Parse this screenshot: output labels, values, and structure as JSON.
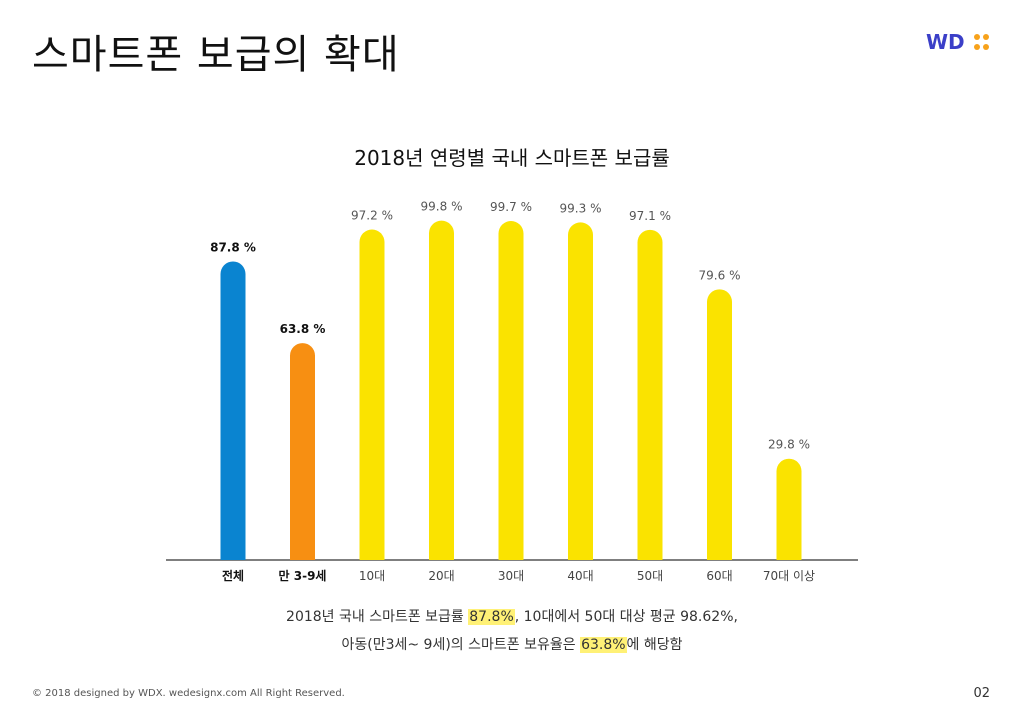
{
  "page": {
    "title": "스마트폰 보급의 확대",
    "page_number": "02",
    "footer": "© 2018 designed by WDX.  wedesignx.com  All Right Reserved."
  },
  "brand": {
    "logo_text": "WD",
    "color": "#3b3fc8",
    "dots_color": "#f7a21b"
  },
  "chart_data": {
    "type": "bar",
    "title": "2018년 연령별 국내 스마트폰 보급률",
    "categories": [
      "전체",
      "만 3-9세",
      "10대",
      "20대",
      "30대",
      "40대",
      "50대",
      "60대",
      "70대 이상"
    ],
    "values": [
      87.8,
      63.8,
      97.2,
      99.8,
      99.7,
      99.3,
      97.1,
      79.6,
      29.8
    ],
    "labels": [
      "87.8 %",
      "63.8 %",
      "97.2 %",
      "99.8 %",
      "99.7 %",
      "99.3 %",
      "97.1 %",
      "79.6 %",
      "29.8 %"
    ],
    "colors": [
      "#0a84d0",
      "#f78f12",
      "#fae300",
      "#fae300",
      "#fae300",
      "#fae300",
      "#fae300",
      "#fae300",
      "#fae300"
    ],
    "bold": [
      true,
      true,
      false,
      false,
      false,
      false,
      false,
      false,
      false
    ],
    "ylim": [
      0,
      100
    ],
    "grid": false,
    "xlabel": "",
    "ylabel": ""
  },
  "summary": {
    "line1_pre": "2018년 국내 스마트폰 보급률 ",
    "line1_hl": "87.8%",
    "line1_post": ", 10대에서 50대 대상 평균 98.62%,",
    "line2_pre": "아동(만3세~ 9세)의 스마트폰 보유율은 ",
    "line2_hl": "63.8%",
    "line2_post": "에 해당함"
  }
}
